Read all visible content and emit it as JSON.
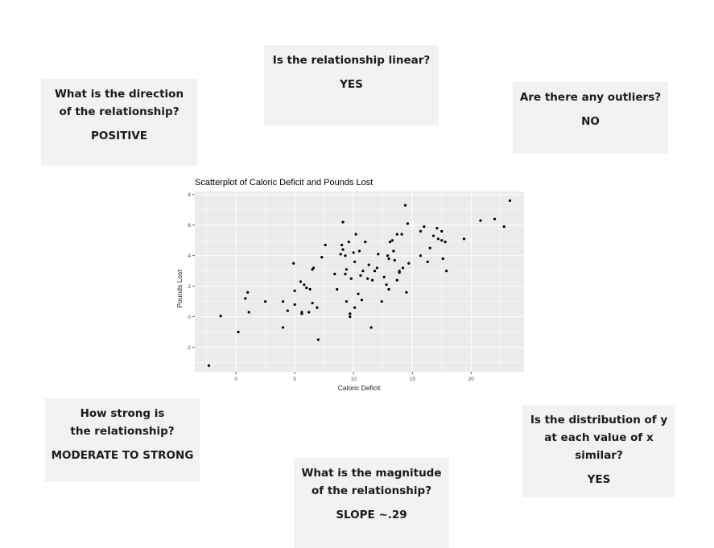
{
  "cards": {
    "direction": {
      "question": "What is the direction of the relationship?",
      "answer": "POSITIVE"
    },
    "linear": {
      "question": "Is the relationship linear?",
      "answer": "YES"
    },
    "outliers": {
      "question": "Are there any outliers?",
      "answer": "NO"
    },
    "strength": {
      "question": "How strong is the relationship?",
      "answer": "MODERATE TO STRONG"
    },
    "magnitude": {
      "question": "What is the magnitude of the relationship?",
      "answer": "SLOPE ~.29"
    },
    "distribution": {
      "question": "Is the distribution of y at each value of x similar?",
      "answer": "YES"
    }
  },
  "chart_data": {
    "type": "scatter",
    "title": "Scatterplot of Caloric Deficit and Pounds Lost",
    "xlabel": "Caloric Deficit",
    "ylabel": "Pounds Lost",
    "xlim": [
      -3.5,
      24.5
    ],
    "ylim": [
      -3.6,
      8.2
    ],
    "xticks": [
      0,
      5,
      10,
      15,
      20
    ],
    "yticks": [
      -2,
      0,
      2,
      4,
      6,
      8
    ],
    "grid": true,
    "background": "#ebebeb",
    "point_color": "#000000",
    "points": [
      [
        -2.3,
        -3.2
      ],
      [
        -1.3,
        0.05
      ],
      [
        0.2,
        -1.0
      ],
      [
        0.8,
        1.2
      ],
      [
        1.0,
        1.6
      ],
      [
        1.1,
        0.3
      ],
      [
        2.5,
        1.0
      ],
      [
        4.0,
        -0.7
      ],
      [
        4.0,
        1.0
      ],
      [
        4.4,
        0.4
      ],
      [
        4.9,
        3.5
      ],
      [
        5.0,
        1.7
      ],
      [
        5.0,
        0.8
      ],
      [
        5.5,
        2.3
      ],
      [
        5.6,
        0.3
      ],
      [
        5.6,
        0.2
      ],
      [
        5.8,
        2.1
      ],
      [
        6.0,
        1.9
      ],
      [
        6.2,
        0.3
      ],
      [
        6.3,
        1.8
      ],
      [
        6.5,
        3.1
      ],
      [
        6.5,
        0.9
      ],
      [
        6.6,
        3.2
      ],
      [
        6.9,
        0.6
      ],
      [
        7.0,
        -1.5
      ],
      [
        7.3,
        3.9
      ],
      [
        7.6,
        4.7
      ],
      [
        8.4,
        2.8
      ],
      [
        8.6,
        1.8
      ],
      [
        8.9,
        4.1
      ],
      [
        9.0,
        4.7
      ],
      [
        9.1,
        6.2
      ],
      [
        9.1,
        4.4
      ],
      [
        9.3,
        4.0
      ],
      [
        9.3,
        2.8
      ],
      [
        9.4,
        3.1
      ],
      [
        9.4,
        1.0
      ],
      [
        9.6,
        4.9
      ],
      [
        9.7,
        0.2
      ],
      [
        9.7,
        0.0
      ],
      [
        9.8,
        2.5
      ],
      [
        10.0,
        4.2
      ],
      [
        10.1,
        0.6
      ],
      [
        10.1,
        3.6
      ],
      [
        10.2,
        5.4
      ],
      [
        10.4,
        1.5
      ],
      [
        10.5,
        4.3
      ],
      [
        10.6,
        2.7
      ],
      [
        10.7,
        1.1
      ],
      [
        10.8,
        3.0
      ],
      [
        11.0,
        4.9
      ],
      [
        11.2,
        2.5
      ],
      [
        11.3,
        3.4
      ],
      [
        11.5,
        -0.7
      ],
      [
        11.6,
        2.4
      ],
      [
        11.8,
        3.0
      ],
      [
        12.0,
        3.2
      ],
      [
        12.1,
        4.1
      ],
      [
        12.4,
        1.0
      ],
      [
        12.6,
        2.6
      ],
      [
        12.8,
        2.1
      ],
      [
        12.9,
        4.0
      ],
      [
        13.0,
        3.8
      ],
      [
        13.0,
        1.8
      ],
      [
        13.1,
        4.9
      ],
      [
        13.3,
        5.0
      ],
      [
        13.4,
        4.3
      ],
      [
        13.5,
        3.7
      ],
      [
        13.7,
        2.4
      ],
      [
        13.7,
        5.4
      ],
      [
        13.9,
        3.0
      ],
      [
        13.9,
        2.9
      ],
      [
        14.1,
        5.4
      ],
      [
        14.2,
        3.2
      ],
      [
        14.4,
        7.3
      ],
      [
        14.5,
        1.6
      ],
      [
        14.6,
        6.1
      ],
      [
        14.7,
        3.5
      ],
      [
        15.7,
        5.6
      ],
      [
        15.7,
        4.0
      ],
      [
        16.0,
        5.9
      ],
      [
        16.3,
        3.6
      ],
      [
        16.5,
        4.5
      ],
      [
        16.8,
        5.3
      ],
      [
        17.1,
        5.8
      ],
      [
        17.2,
        5.1
      ],
      [
        17.5,
        5.0
      ],
      [
        17.6,
        3.8
      ],
      [
        17.8,
        4.9
      ],
      [
        17.9,
        3.0
      ],
      [
        17.5,
        5.6
      ],
      [
        19.4,
        5.1
      ],
      [
        20.8,
        6.3
      ],
      [
        22.0,
        6.4
      ],
      [
        22.8,
        5.9
      ],
      [
        23.3,
        7.6
      ]
    ]
  }
}
